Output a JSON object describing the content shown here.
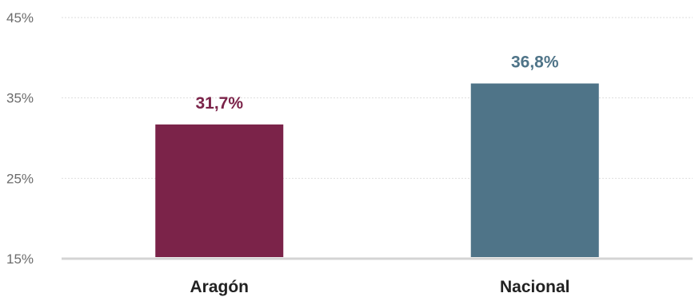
{
  "chart_data": {
    "type": "bar",
    "categories": [
      "Aragón",
      "Nacional"
    ],
    "values": [
      31.7,
      36.8
    ],
    "data_labels": [
      "31,7%",
      "36,8%"
    ],
    "colors": [
      "#7b2349",
      "#4f7488"
    ],
    "ylim": [
      15,
      45
    ],
    "yticks": [
      15,
      25,
      35,
      45
    ],
    "ytick_labels": [
      "15%",
      "25%",
      "35%",
      "45%"
    ],
    "grid": true,
    "title": "",
    "xlabel": "",
    "ylabel": ""
  }
}
